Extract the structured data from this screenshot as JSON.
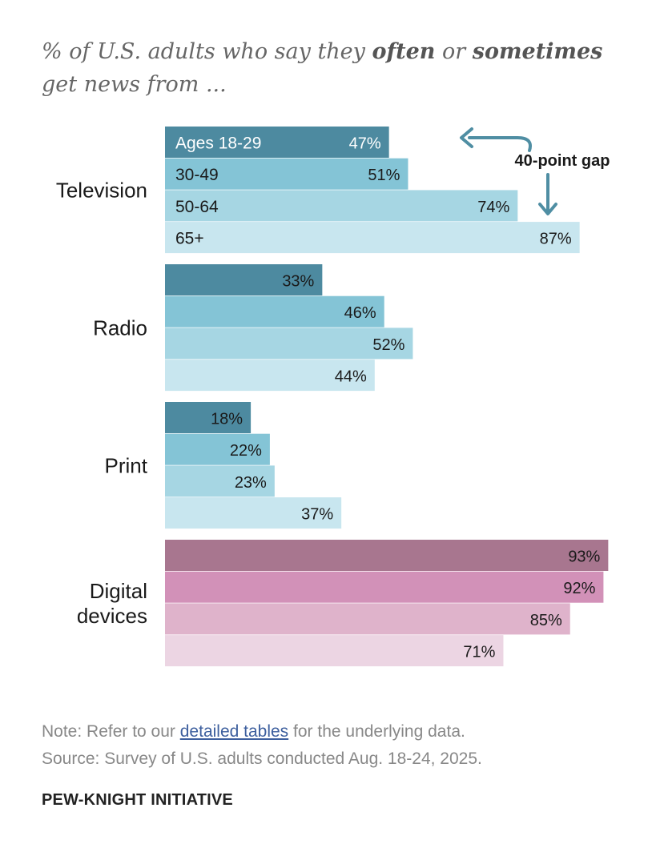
{
  "title": {
    "part1": "% of U.S. adults who say they ",
    "bold1": "often",
    "part2": " or ",
    "bold2": "sometimes",
    "part3": " get news from ..."
  },
  "chart_data": {
    "type": "bar",
    "orientation": "horizontal",
    "xlim": [
      0,
      100
    ],
    "value_suffix": "%",
    "age_groups": [
      "Ages 18-29",
      "30-49",
      "50-64",
      "65+"
    ],
    "groups": [
      {
        "name": "Television",
        "label_lines": [
          "Television"
        ],
        "values": [
          47,
          51,
          74,
          87
        ],
        "colors": [
          "#4d8aa0",
          "#84c4d6",
          "#a6d6e3",
          "#c8e6ef"
        ]
      },
      {
        "name": "Radio",
        "label_lines": [
          "Radio"
        ],
        "values": [
          33,
          46,
          52,
          44
        ],
        "colors": [
          "#4d8aa0",
          "#84c4d6",
          "#a6d6e3",
          "#c8e6ef"
        ]
      },
      {
        "name": "Print",
        "label_lines": [
          "Print"
        ],
        "values": [
          18,
          22,
          23,
          37
        ],
        "colors": [
          "#4d8aa0",
          "#84c4d6",
          "#a6d6e3",
          "#c8e6ef"
        ]
      },
      {
        "name": "Digital devices",
        "label_lines": [
          "Digital",
          "devices"
        ],
        "values": [
          93,
          92,
          85,
          71
        ],
        "colors": [
          "#a8768f",
          "#d291b8",
          "#dfb3cb",
          "#ecd5e3"
        ]
      }
    ],
    "annotation": {
      "text": "40-point gap",
      "from_value": 47,
      "to_value": 87
    }
  },
  "note": {
    "prefix": "Note: Refer to our ",
    "link": "detailed tables",
    "suffix": " for the underlying data."
  },
  "source": "Source: Survey of U.S. adults conducted Aug. 18-24, 2025.",
  "brand": "PEW-KNIGHT INITIATIVE",
  "colors": {
    "arrow": "#4f8ea3",
    "label_text": "#1a1a1a",
    "white_text": "#ffffff"
  }
}
